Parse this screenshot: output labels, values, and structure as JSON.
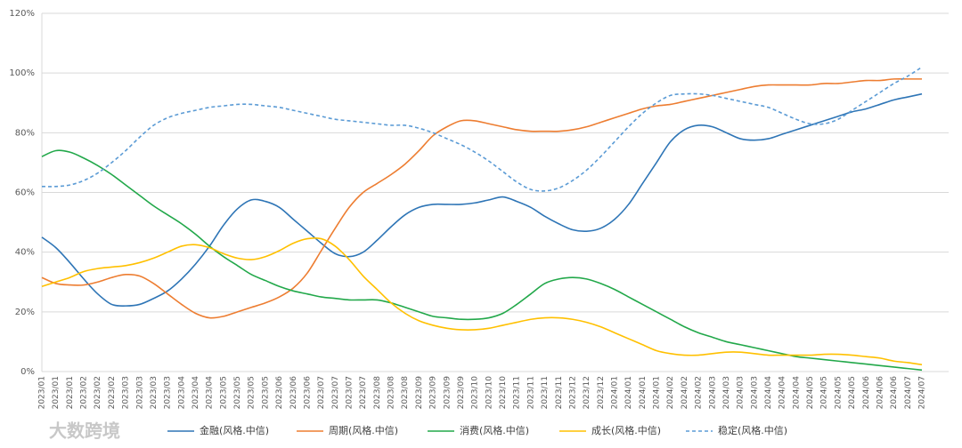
{
  "chart_data": {
    "type": "line",
    "watermark": "大数跨境",
    "categories": [
      "2023/01",
      "2023/01",
      "2023/01",
      "2023/02",
      "2023/02",
      "2023/02",
      "2023/03",
      "2023/03",
      "2023/03",
      "2023/03",
      "2023/04",
      "2023/04",
      "2023/04",
      "2023/05",
      "2023/05",
      "2023/05",
      "2023/05",
      "2023/06",
      "2023/06",
      "2023/06",
      "2023/07",
      "2023/07",
      "2023/07",
      "2023/07",
      "2023/08",
      "2023/08",
      "2023/08",
      "2023/09",
      "2023/09",
      "2023/09",
      "2023/09",
      "2023/10",
      "2023/10",
      "2023/10",
      "2023/11",
      "2023/11",
      "2023/11",
      "2023/11",
      "2023/12",
      "2023/12",
      "2023/12",
      "2024/01",
      "2024/01",
      "2024/01",
      "2024/01",
      "2024/02",
      "2024/02",
      "2024/02",
      "2024/03",
      "2024/03",
      "2024/03",
      "2024/03",
      "2024/04",
      "2024/04",
      "2024/04",
      "2024/05",
      "2024/05",
      "2024/05",
      "2024/05",
      "2024/06",
      "2024/06",
      "2024/06",
      "2024/07",
      "2024/07"
    ],
    "series": [
      {
        "name": "金融(风格.中信)",
        "color": "#2e75b6",
        "dash": false,
        "values": [
          45,
          41.5,
          36.5,
          31,
          26,
          22.5,
          22,
          22.5,
          24.5,
          27,
          31,
          36,
          42,
          49,
          54.5,
          57.5,
          57,
          55,
          51,
          47,
          43,
          39.5,
          38.5,
          40,
          44,
          48.5,
          52.5,
          55,
          56,
          56,
          56,
          56.5,
          57.5,
          58.5,
          57,
          55,
          52,
          49.5,
          47.5,
          47,
          48,
          51,
          56,
          63,
          70,
          77,
          81,
          82.5,
          82,
          80,
          78,
          77.5,
          78,
          79.5,
          81,
          82.5,
          84,
          85.5,
          87,
          88,
          89.5,
          91,
          92,
          93
        ]
      },
      {
        "name": "周期(风格.中信)",
        "color": "#ed7d31",
        "dash": false,
        "values": [
          31.5,
          29.5,
          29,
          29,
          30,
          31.5,
          32.5,
          32,
          29.5,
          26,
          22.5,
          19.5,
          18,
          18.5,
          20,
          21.5,
          23,
          25,
          28,
          33,
          40.5,
          48,
          55,
          60,
          63,
          66,
          69.5,
          74,
          79,
          82,
          84,
          84,
          83,
          82,
          81,
          80.5,
          80.5,
          80.5,
          81,
          82,
          83.5,
          85,
          86.5,
          88,
          89,
          89.5,
          90.5,
          91.5,
          92.5,
          93.5,
          94.5,
          95.5,
          96,
          96,
          96,
          96,
          96.5,
          96.5,
          97,
          97.5,
          97.5,
          98,
          98,
          98
        ]
      },
      {
        "name": "消费(风格.中信)",
        "color": "#22a84a",
        "dash": false,
        "values": [
          72,
          74,
          73.5,
          71.5,
          69,
          66,
          62.5,
          59,
          55.5,
          52.5,
          49.5,
          46,
          42,
          38.5,
          35.5,
          32.5,
          30.5,
          28.5,
          27,
          26,
          25,
          24.5,
          24,
          24,
          24,
          23,
          21.5,
          20,
          18.5,
          18,
          17.5,
          17.5,
          18,
          19.5,
          22.5,
          26,
          29.5,
          31,
          31.5,
          31,
          29.5,
          27.5,
          25,
          22.5,
          20,
          17.5,
          15,
          13,
          11.5,
          10,
          9,
          8,
          7,
          6,
          5,
          4.5,
          4,
          3.5,
          3,
          2.5,
          2,
          1.5,
          1,
          0.5
        ]
      },
      {
        "name": "成长(风格.中信)",
        "color": "#ffc000",
        "dash": false,
        "values": [
          28.5,
          30,
          31.5,
          33.5,
          34.5,
          35,
          35.5,
          36.5,
          38,
          40,
          42,
          42.5,
          41.5,
          39.5,
          38,
          37.5,
          38.5,
          40.5,
          43,
          44.5,
          44.5,
          42,
          37.5,
          32,
          27.5,
          23,
          19.5,
          17,
          15.5,
          14.5,
          14,
          14,
          14.5,
          15.5,
          16.5,
          17.5,
          18,
          18,
          17.5,
          16.5,
          15,
          13,
          11,
          9,
          7,
          6,
          5.5,
          5.5,
          6,
          6.5,
          6.5,
          6,
          5.5,
          5.5,
          5.5,
          5.5,
          5.8,
          5.8,
          5.5,
          5,
          4.5,
          3.5,
          3,
          2.3
        ]
      },
      {
        "name": "稳定(风格.中信)",
        "color": "#5b9bd5",
        "dash": true,
        "values": [
          62,
          62,
          62.5,
          64,
          66.5,
          70,
          74,
          78.5,
          82.5,
          85,
          86.5,
          87.5,
          88.5,
          89,
          89.5,
          89.5,
          89,
          88.5,
          87.5,
          86.5,
          85.5,
          84.5,
          84,
          83.5,
          83,
          82.5,
          82.5,
          81.5,
          80,
          78,
          76,
          73.5,
          70.5,
          67,
          63.5,
          61,
          60.5,
          61.5,
          64,
          67.5,
          72,
          77,
          82,
          86.5,
          90,
          92.5,
          93,
          93,
          92.5,
          91.5,
          90.5,
          89.5,
          88.5,
          86.5,
          84.5,
          83,
          83,
          84.5,
          87.5,
          90.5,
          93.5,
          96.5,
          99,
          102
        ]
      }
    ],
    "ylim": [
      0,
      120
    ],
    "yticks": [
      {
        "value": 0,
        "label": "0%"
      },
      {
        "value": 20,
        "label": "20%"
      },
      {
        "value": 40,
        "label": "40%"
      },
      {
        "value": 60,
        "label": "60%"
      },
      {
        "value": 80,
        "label": "80%"
      },
      {
        "value": 100,
        "label": "100%"
      },
      {
        "value": 120,
        "label": "120%"
      }
    ],
    "grid": true,
    "legend": "bottom"
  }
}
